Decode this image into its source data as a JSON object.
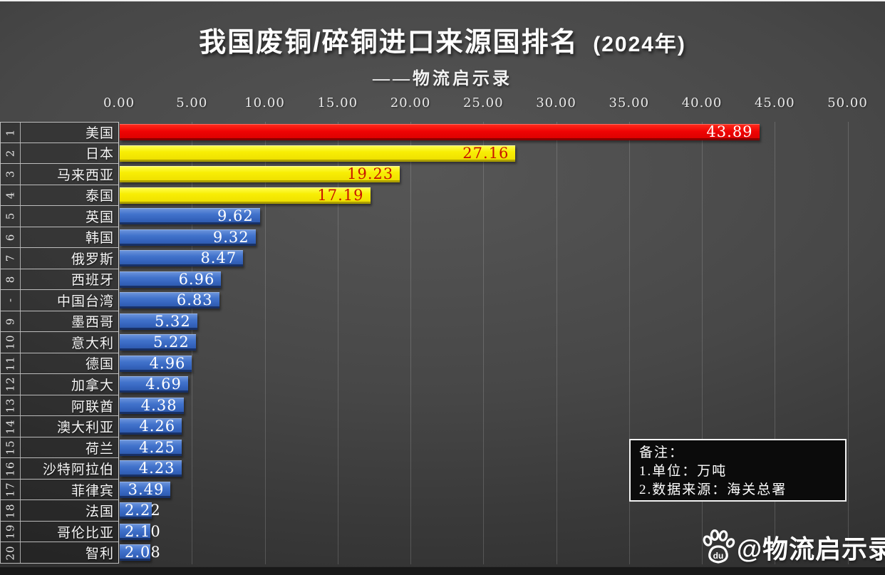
{
  "header": {
    "title": "我国废铜/碎铜进口来源国排名",
    "title_suffix": "(2024年)",
    "subtitle": "——物流启示录"
  },
  "chart_data": {
    "type": "bar",
    "orientation": "horizontal",
    "title": "我国废铜/碎铜进口来源国排名 (2024年)",
    "subtitle": "——物流启示录",
    "unit": "万吨",
    "xlim": [
      0,
      50
    ],
    "x_ticks": [
      0,
      5,
      10,
      15,
      20,
      25,
      30,
      35,
      40,
      45,
      50
    ],
    "x_tick_labels": [
      "0.00",
      "5.00",
      "10.00",
      "15.00",
      "20.00",
      "25.00",
      "30.00",
      "35.00",
      "40.00",
      "45.00",
      "50.00"
    ],
    "grid": true,
    "rows": [
      {
        "rank": "1",
        "country": "美国",
        "value": 43.89,
        "label": "43.89",
        "tier": "red"
      },
      {
        "rank": "2",
        "country": "日本",
        "value": 27.16,
        "label": "27.16",
        "tier": "yellow"
      },
      {
        "rank": "3",
        "country": "马来西亚",
        "value": 19.23,
        "label": "19.23",
        "tier": "yellow"
      },
      {
        "rank": "4",
        "country": "泰国",
        "value": 17.19,
        "label": "17.19",
        "tier": "yellow"
      },
      {
        "rank": "5",
        "country": "英国",
        "value": 9.62,
        "label": "9.62",
        "tier": "blue"
      },
      {
        "rank": "6",
        "country": "韩国",
        "value": 9.32,
        "label": "9.32",
        "tier": "blue"
      },
      {
        "rank": "7",
        "country": "俄罗斯",
        "value": 8.47,
        "label": "8.47",
        "tier": "blue"
      },
      {
        "rank": "8",
        "country": "西班牙",
        "value": 6.96,
        "label": "6.96",
        "tier": "blue"
      },
      {
        "rank": "-",
        "country": "中国台湾",
        "value": 6.83,
        "label": "6.83",
        "tier": "blue"
      },
      {
        "rank": "9",
        "country": "墨西哥",
        "value": 5.32,
        "label": "5.32",
        "tier": "blue"
      },
      {
        "rank": "10",
        "country": "意大利",
        "value": 5.22,
        "label": "5.22",
        "tier": "blue"
      },
      {
        "rank": "11",
        "country": "德国",
        "value": 4.96,
        "label": "4.96",
        "tier": "blue"
      },
      {
        "rank": "12",
        "country": "加拿大",
        "value": 4.69,
        "label": "4.69",
        "tier": "blue"
      },
      {
        "rank": "13",
        "country": "阿联酋",
        "value": 4.38,
        "label": "4.38",
        "tier": "blue"
      },
      {
        "rank": "14",
        "country": "澳大利亚",
        "value": 4.26,
        "label": "4.26",
        "tier": "blue"
      },
      {
        "rank": "15",
        "country": "荷兰",
        "value": 4.25,
        "label": "4.25",
        "tier": "blue"
      },
      {
        "rank": "16",
        "country": "沙特阿拉伯",
        "value": 4.23,
        "label": "4.23",
        "tier": "blue"
      },
      {
        "rank": "17",
        "country": "菲律宾",
        "value": 3.49,
        "label": "3.49",
        "tier": "blue"
      },
      {
        "rank": "18",
        "country": "法国",
        "value": 2.22,
        "label": "2.22",
        "tier": "blue"
      },
      {
        "rank": "19",
        "country": "哥伦比亚",
        "value": 2.1,
        "label": "2.10",
        "tier": "blue"
      },
      {
        "rank": "20",
        "country": "智利",
        "value": 2.08,
        "label": "2.08",
        "tier": "blue"
      }
    ]
  },
  "note": {
    "lines": [
      "备注：",
      "1.单位：万吨",
      "2.数据来源：海关总署"
    ]
  },
  "watermark": {
    "icon": "baidu-paw-icon",
    "icon_text": "du",
    "text": "@物流启示录"
  },
  "colors": {
    "bar_red": "#ef0404",
    "bar_yellow": "#f8ee04",
    "bar_blue": "#3b6cc7",
    "value_on_yellow": "#c81400",
    "value_on_blue": "#ffffff",
    "value_on_red": "#ffffff",
    "gridline": "rgba(255,255,255,0.16)"
  }
}
